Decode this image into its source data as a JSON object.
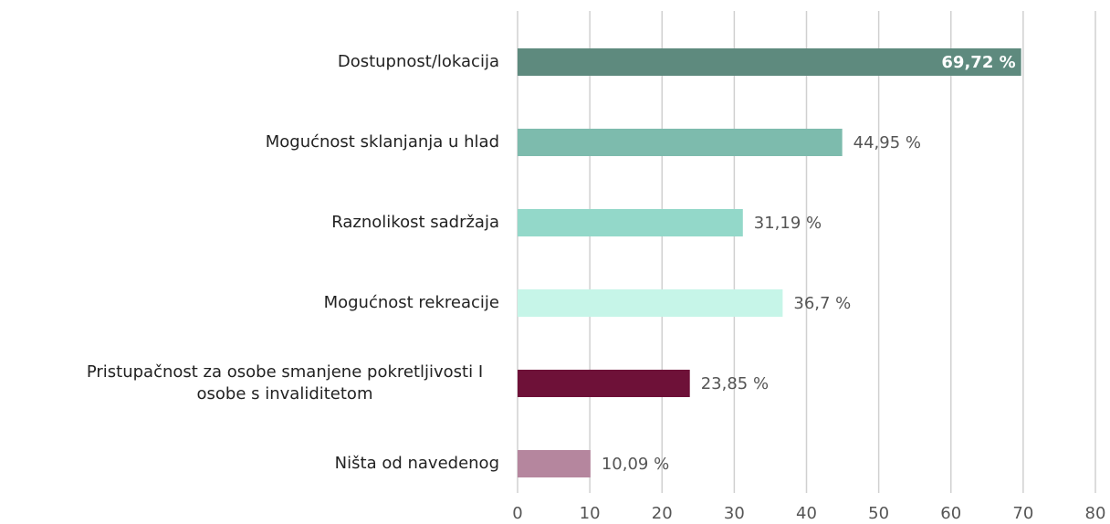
{
  "chart_data": {
    "type": "hbar",
    "categories": [
      "Dostupnost/lokacija",
      "Mogućnost sklanjanja u hlad",
      "Raznolikost sadržaja",
      "Mogućnost rekreacije",
      "Pristupačnost za osobe smanjene pokretljivosti I osobe s invaliditetom",
      "Ništa od navedenog"
    ],
    "values": [
      69.72,
      44.95,
      31.19,
      36.7,
      23.85,
      10.09
    ],
    "value_labels": [
      "69,72 %",
      "44,95 %",
      "31,19 %",
      "36,7 %",
      "23,85 %",
      "10,09 %"
    ],
    "colors": [
      "#5e8a7e",
      "#7dbbad",
      "#93d8c9",
      "#c6f5e8",
      "#6e1138",
      "#b5869e"
    ],
    "xlim": [
      0,
      80
    ],
    "xticks": [
      0,
      10,
      20,
      30,
      40,
      50,
      60,
      70,
      80
    ],
    "grid": true
  }
}
